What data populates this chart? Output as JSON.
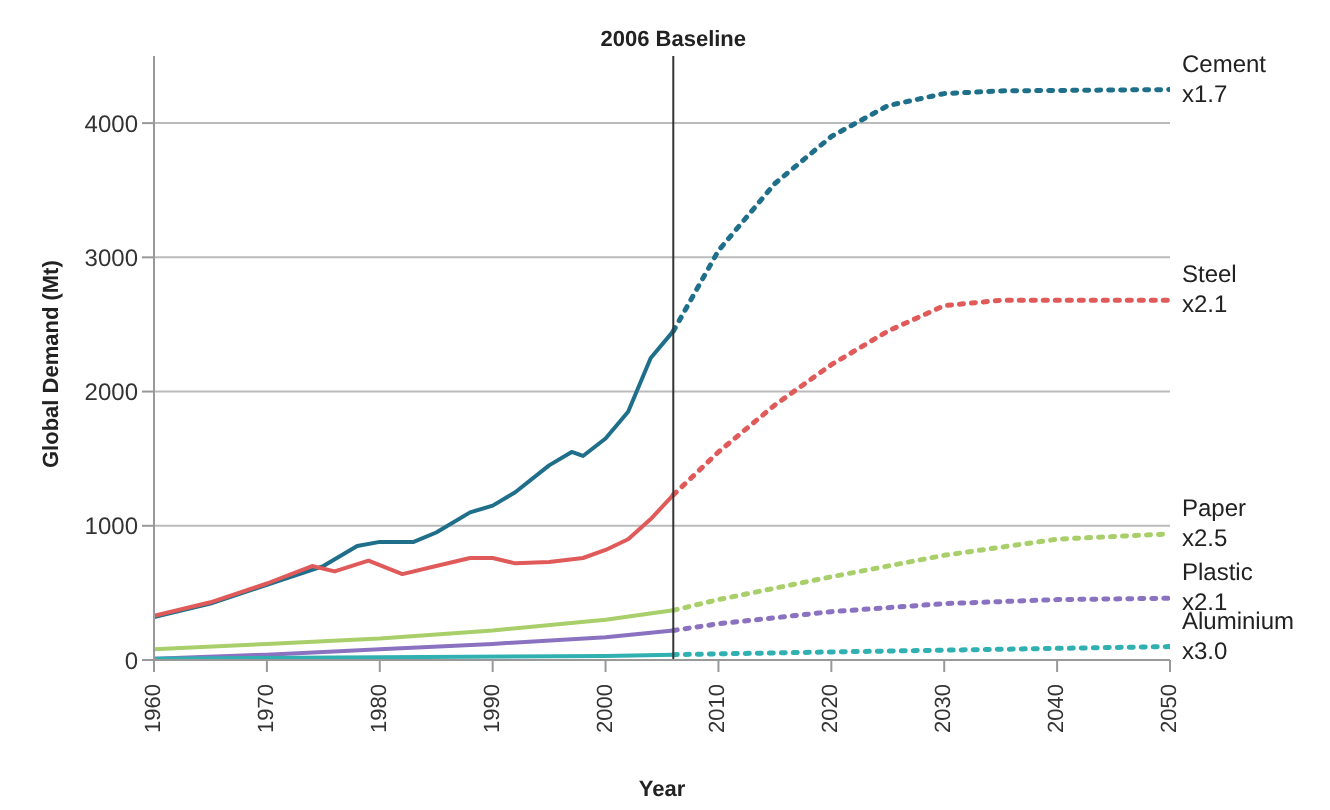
{
  "chart_data": {
    "type": "line",
    "xlabel": "Year",
    "ylabel": "Global Demand (Mt)",
    "xlim": [
      1960,
      2050
    ],
    "xticks": [
      1960,
      1970,
      1980,
      1990,
      2000,
      2010,
      2020,
      2030,
      2040,
      2050
    ],
    "ylim": [
      0,
      4500
    ],
    "yticks": [
      0,
      1000,
      2000,
      3000,
      4000
    ],
    "grid": "y",
    "ref_lines": [
      {
        "axis": "x",
        "value": 2006,
        "label": "2006 Baseline",
        "color": "#333333"
      }
    ],
    "annotations": [
      "x1.7",
      "x2.1",
      "x2.5",
      "x2.1",
      "x3.0"
    ],
    "series": [
      {
        "color": "#1f6f8b",
        "line_style": "solid",
        "x": [
          1960,
          1965,
          1970,
          1975,
          1978,
          1980,
          1983,
          1985,
          1988,
          1990,
          1992,
          1995,
          1997,
          1998,
          2000,
          2002,
          2004,
          2006
        ],
        "values": [
          320,
          420,
          560,
          700,
          850,
          880,
          880,
          950,
          1100,
          1150,
          1250,
          1450,
          1550,
          1520,
          1650,
          1850,
          2250,
          2450
        ]
      },
      {
        "name": "Cement",
        "color": "#1f6f8b",
        "line_style": "dotted",
        "x": [
          2006,
          2010,
          2015,
          2020,
          2025,
          2030,
          2035,
          2050
        ],
        "values": [
          2450,
          3050,
          3550,
          3900,
          4130,
          4220,
          4240,
          4250
        ]
      },
      {
        "color": "#e05a5a",
        "line_style": "solid",
        "x": [
          1960,
          1965,
          1970,
          1974,
          1976,
          1979,
          1982,
          1985,
          1988,
          1990,
          1992,
          1995,
          1998,
          2000,
          2002,
          2004,
          2006
        ],
        "values": [
          330,
          430,
          570,
          700,
          660,
          740,
          640,
          700,
          760,
          760,
          720,
          730,
          760,
          820,
          900,
          1050,
          1230
        ]
      },
      {
        "name": "Steel",
        "color": "#e05a5a",
        "line_style": "dotted",
        "x": [
          2006,
          2010,
          2015,
          2020,
          2025,
          2030,
          2035,
          2050
        ],
        "values": [
          1230,
          1550,
          1900,
          2200,
          2450,
          2640,
          2680,
          2680
        ]
      },
      {
        "color": "#a8cf6a",
        "line_style": "solid",
        "x": [
          1960,
          1970,
          1980,
          1990,
          2000,
          2006
        ],
        "values": [
          80,
          120,
          160,
          220,
          300,
          370
        ]
      },
      {
        "name": "Paper",
        "color": "#a8cf6a",
        "line_style": "dotted",
        "x": [
          2006,
          2010,
          2020,
          2030,
          2040,
          2050
        ],
        "values": [
          370,
          450,
          620,
          780,
          900,
          940
        ]
      },
      {
        "color": "#8a72c0",
        "line_style": "solid",
        "x": [
          1960,
          1970,
          1980,
          1990,
          2000,
          2006
        ],
        "values": [
          10,
          40,
          80,
          120,
          170,
          220
        ]
      },
      {
        "name": "Plastic",
        "color": "#8a72c0",
        "line_style": "dotted",
        "x": [
          2006,
          2010,
          2020,
          2030,
          2040,
          2050
        ],
        "values": [
          220,
          270,
          360,
          420,
          450,
          460
        ]
      },
      {
        "color": "#30b0b0",
        "line_style": "solid",
        "x": [
          1960,
          1980,
          2000,
          2006
        ],
        "values": [
          10,
          20,
          30,
          40
        ]
      },
      {
        "name": "Aluminium",
        "color": "#30b0b0",
        "line_style": "dotted",
        "x": [
          2006,
          2020,
          2035,
          2050
        ],
        "values": [
          40,
          60,
          80,
          100
        ]
      }
    ]
  }
}
